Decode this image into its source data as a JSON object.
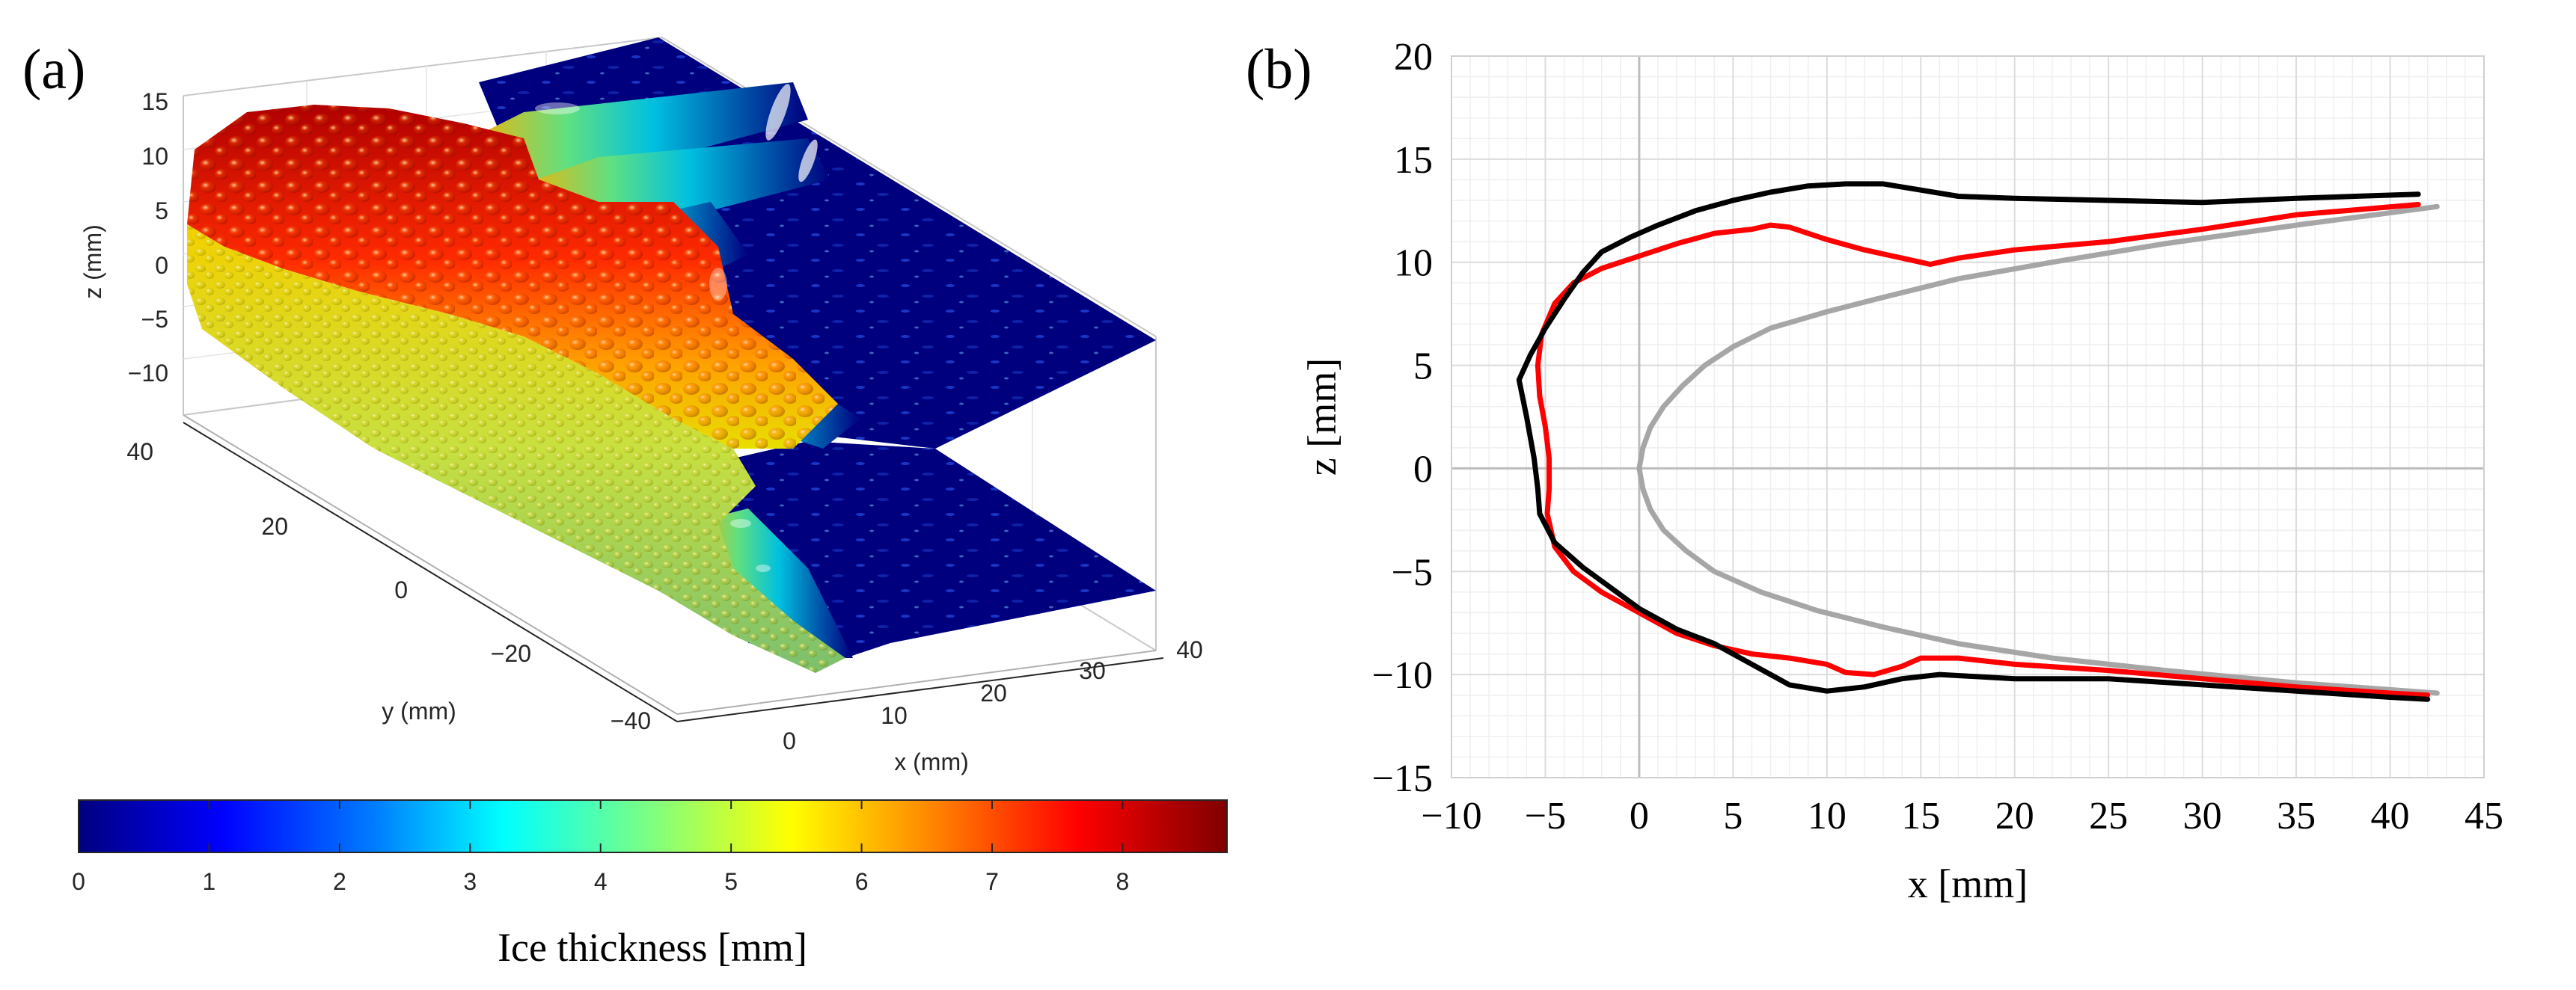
{
  "panel_a": {
    "label": "(a)",
    "colorbar": {
      "title": "Ice thickness [mm]",
      "ticks": [
        "0",
        "1",
        "2",
        "3",
        "4",
        "5",
        "6",
        "7",
        "8"
      ],
      "range": [
        0,
        8.8
      ],
      "colormap": [
        "#00007f",
        "#0000ff",
        "#007fff",
        "#00ffff",
        "#7fff7f",
        "#ffff00",
        "#ff7f00",
        "#ff0000",
        "#7f0000"
      ]
    }
  },
  "panel_b": {
    "label": "(b)"
  },
  "chart_data": [
    {
      "id": "ice-surface-3d",
      "type": "surface3d",
      "title": "",
      "xlabel": "x (mm)",
      "ylabel": "y (mm)",
      "zlabel": "z (mm)",
      "xticks": [
        "0",
        "10",
        "20",
        "30",
        "40"
      ],
      "yticks": [
        "−40",
        "−20",
        "0",
        "20",
        "40"
      ],
      "zticks": [
        "15",
        "10",
        "5",
        "0",
        "−5",
        "−10"
      ],
      "color_variable": "Ice thickness [mm]"
    },
    {
      "id": "ice-profile",
      "type": "line",
      "title": "",
      "xlabel": "x [mm]",
      "ylabel": "z [mm]",
      "xlim": [
        -10,
        45
      ],
      "ylim": [
        -15,
        20
      ],
      "xticks": [
        -10,
        -5,
        0,
        5,
        10,
        15,
        20,
        25,
        30,
        35,
        40,
        45
      ],
      "yticks": [
        20,
        15,
        10,
        5,
        0,
        -5,
        -10,
        -15
      ],
      "tick_labels_x": [
        "−10",
        "−5",
        "0",
        "5",
        "10",
        "15",
        "20",
        "25",
        "30",
        "35",
        "40",
        "45"
      ],
      "tick_labels_y": [
        "20",
        "15",
        "10",
        "5",
        "0",
        "−5",
        "−10",
        "−15"
      ],
      "grid": true,
      "series": [
        {
          "name": "clean-airfoil",
          "color": "#a6a6a6",
          "points": [
            [
              42.5,
              12.7
            ],
            [
              35,
              11.8
            ],
            [
              28,
              10.9
            ],
            [
              22,
              10.0
            ],
            [
              17,
              9.2
            ],
            [
              13,
              8.3
            ],
            [
              10,
              7.6
            ],
            [
              7,
              6.8
            ],
            [
              5,
              5.9
            ],
            [
              3.5,
              5.0
            ],
            [
              2.3,
              4.0
            ],
            [
              1.3,
              3.0
            ],
            [
              0.6,
              2.0
            ],
            [
              0.2,
              1.0
            ],
            [
              0,
              0
            ],
            [
              0.2,
              -1.0
            ],
            [
              0.6,
              -2.0
            ],
            [
              1.3,
              -3.0
            ],
            [
              2.5,
              -4.0
            ],
            [
              4,
              -5.0
            ],
            [
              6.5,
              -6.0
            ],
            [
              9.5,
              -6.9
            ],
            [
              13,
              -7.7
            ],
            [
              17,
              -8.5
            ],
            [
              22,
              -9.2
            ],
            [
              28,
              -9.8
            ],
            [
              35,
              -10.4
            ],
            [
              42.5,
              -10.9
            ]
          ]
        },
        {
          "name": "profile-red",
          "color": "#ff0000",
          "points": [
            [
              41.5,
              12.8
            ],
            [
              35,
              12.3
            ],
            [
              30,
              11.6
            ],
            [
              25,
              11.0
            ],
            [
              20,
              10.6
            ],
            [
              17,
              10.2
            ],
            [
              15.5,
              9.9
            ],
            [
              14,
              10.2
            ],
            [
              12,
              10.6
            ],
            [
              10,
              11.1
            ],
            [
              8,
              11.7
            ],
            [
              7,
              11.8
            ],
            [
              6,
              11.6
            ],
            [
              4,
              11.4
            ],
            [
              2,
              10.9
            ],
            [
              0,
              10.3
            ],
            [
              -2,
              9.7
            ],
            [
              -3.5,
              9.0
            ],
            [
              -4.5,
              8.0
            ],
            [
              -5.2,
              6.5
            ],
            [
              -5.4,
              5.0
            ],
            [
              -5.3,
              3.5
            ],
            [
              -5.0,
              2.0
            ],
            [
              -4.8,
              0.5
            ],
            [
              -4.8,
              -1.0
            ],
            [
              -4.9,
              -2.2
            ],
            [
              -4.5,
              -3.8
            ],
            [
              -3.5,
              -5.0
            ],
            [
              -2,
              -6.0
            ],
            [
              0,
              -7.0
            ],
            [
              2,
              -8.0
            ],
            [
              4,
              -8.6
            ],
            [
              6,
              -9.0
            ],
            [
              8,
              -9.2
            ],
            [
              10,
              -9.5
            ],
            [
              11,
              -9.9
            ],
            [
              12.5,
              -10.0
            ],
            [
              14,
              -9.6
            ],
            [
              15,
              -9.2
            ],
            [
              17,
              -9.2
            ],
            [
              20,
              -9.5
            ],
            [
              25,
              -9.8
            ],
            [
              30,
              -10.2
            ],
            [
              35,
              -10.6
            ],
            [
              40,
              -10.9
            ],
            [
              42,
              -11.0
            ]
          ]
        },
        {
          "name": "profile-black",
          "color": "#000000",
          "points": [
            [
              41.5,
              13.3
            ],
            [
              35,
              13.1
            ],
            [
              30,
              12.9
            ],
            [
              25,
              13.0
            ],
            [
              20,
              13.1
            ],
            [
              17,
              13.2
            ],
            [
              15,
              13.5
            ],
            [
              13,
              13.8
            ],
            [
              11,
              13.8
            ],
            [
              9,
              13.7
            ],
            [
              7,
              13.4
            ],
            [
              5,
              13.0
            ],
            [
              3,
              12.5
            ],
            [
              1,
              11.8
            ],
            [
              -0.5,
              11.2
            ],
            [
              -2,
              10.5
            ],
            [
              -3,
              9.5
            ],
            [
              -4,
              8.2
            ],
            [
              -5,
              6.8
            ],
            [
              -5.8,
              5.5
            ],
            [
              -6.4,
              4.3
            ],
            [
              -6.0,
              2.5
            ],
            [
              -5.6,
              0.5
            ],
            [
              -5.4,
              -1.0
            ],
            [
              -5.3,
              -2.2
            ],
            [
              -4.5,
              -3.6
            ],
            [
              -3,
              -4.8
            ],
            [
              -1.5,
              -5.8
            ],
            [
              0,
              -6.8
            ],
            [
              2,
              -7.8
            ],
            [
              4,
              -8.5
            ],
            [
              6,
              -9.5
            ],
            [
              8,
              -10.5
            ],
            [
              10,
              -10.8
            ],
            [
              12,
              -10.6
            ],
            [
              14,
              -10.2
            ],
            [
              16,
              -10.0
            ],
            [
              20,
              -10.2
            ],
            [
              25,
              -10.2
            ],
            [
              30,
              -10.5
            ],
            [
              35,
              -10.8
            ],
            [
              40,
              -11.1
            ],
            [
              42,
              -11.2
            ]
          ]
        }
      ]
    }
  ]
}
